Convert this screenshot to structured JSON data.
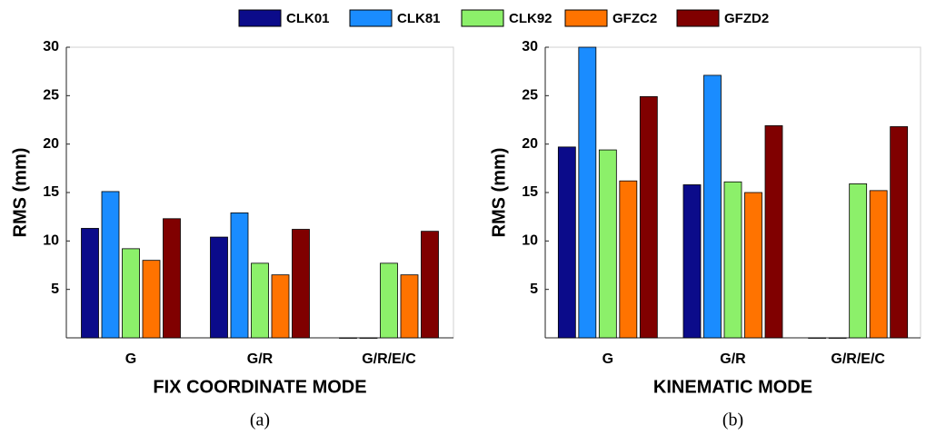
{
  "chart_data": [
    {
      "type": "bar",
      "xlabel": "FIX COORDINATE MODE",
      "ylabel": "RMS (mm)",
      "caption": "(a)",
      "categories": [
        "G",
        "G/R",
        "G/R/E/C"
      ],
      "series": [
        {
          "name": "CLK01",
          "color": "#0b0b8a",
          "values": [
            11.3,
            10.4,
            0
          ]
        },
        {
          "name": "CLK81",
          "color": "#1a8cff",
          "values": [
            15.1,
            12.9,
            0
          ]
        },
        {
          "name": "CLK92",
          "color": "#8cf06a",
          "values": [
            9.2,
            7.7,
            7.7
          ]
        },
        {
          "name": "GFZC2",
          "color": "#ff7300",
          "values": [
            8.0,
            6.5,
            6.5
          ]
        },
        {
          "name": "GFZD2",
          "color": "#800000",
          "values": [
            12.3,
            11.2,
            11.0
          ]
        }
      ],
      "ylim": [
        0,
        30
      ],
      "yticks": [
        5,
        10,
        15,
        20,
        25,
        30
      ]
    },
    {
      "type": "bar",
      "xlabel": "KINEMATIC MODE",
      "ylabel": "RMS (mm)",
      "caption": "(b)",
      "categories": [
        "G",
        "G/R",
        "G/R/E/C"
      ],
      "series": [
        {
          "values": [
            19.7,
            15.8,
            0
          ]
        },
        {
          "values": [
            30,
            27.1,
            0
          ]
        },
        {
          "values": [
            19.4,
            16.1,
            15.9
          ]
        },
        {
          "values": [
            16.2,
            15.0,
            15.2
          ]
        },
        {
          "values": [
            24.9,
            21.9,
            21.8
          ]
        }
      ],
      "ylim": [
        0,
        30
      ],
      "yticks": [
        5,
        10,
        15,
        20,
        25,
        30
      ]
    }
  ]
}
